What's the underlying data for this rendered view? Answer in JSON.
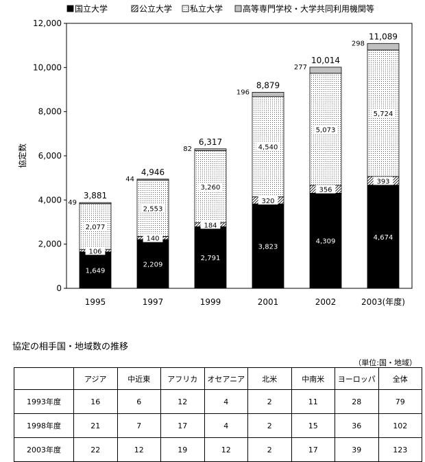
{
  "chart_data": {
    "type": "bar",
    "stacked": true,
    "categories": [
      "1995",
      "1997",
      "1999",
      "2001",
      "2002",
      "2003(年度)"
    ],
    "series": [
      {
        "name": "国立大学",
        "color": "#000000",
        "pattern": "solid",
        "values": [
          1649,
          2209,
          2791,
          3823,
          4309,
          4674
        ]
      },
      {
        "name": "公立大学",
        "color": "#ffffff",
        "pattern": "hatch",
        "values": [
          106,
          140,
          184,
          320,
          356,
          393
        ]
      },
      {
        "name": "私立大学",
        "color": "#ffffff",
        "pattern": "dots",
        "values": [
          2077,
          2553,
          3260,
          4540,
          5073,
          5724
        ]
      },
      {
        "name": "高等専門学校・大学共同利用機関等",
        "color": "#c0c0c0",
        "pattern": "solid",
        "values": [
          49,
          44,
          82,
          196,
          277,
          298
        ]
      }
    ],
    "totals": [
      3881,
      4946,
      6317,
      8879,
      10014,
      11089
    ],
    "value_labels": {
      "国立大学": [
        "1,649",
        "2,209",
        "2,791",
        "3,823",
        "4,309",
        "4,674"
      ],
      "公立大学": [
        "106",
        "140",
        "184",
        "320",
        "356",
        "393"
      ],
      "私立大学": [
        "2,077",
        "2,553",
        "3,260",
        "4,540",
        "5,073",
        "5,724"
      ],
      "高等専門学校・大学共同利用機関等": [
        "49",
        "44",
        "82",
        "196",
        "277",
        "298"
      ]
    },
    "total_labels": [
      "3,881",
      "4,946",
      "6,317",
      "8,879",
      "10,014",
      "11,089"
    ],
    "ylabel": "協定数",
    "ylim": [
      0,
      12000
    ],
    "yticks": [
      0,
      2000,
      4000,
      6000,
      8000,
      10000,
      12000
    ],
    "ytick_labels": [
      "0",
      "2,000",
      "4,000",
      "6,000",
      "8,000",
      "10,000",
      "12,000"
    ],
    "legend_position": "top",
    "grid": false
  },
  "table": {
    "title": "協定の相手国・地域数の推移",
    "unit": "（単位:国・地域）",
    "columns": [
      "アジア",
      "中近東",
      "アフリカ",
      "オセアニア",
      "北米",
      "中南米",
      "ヨーロッパ",
      "全体"
    ],
    "rows": [
      {
        "label": "1993年度",
        "values": [
          "16",
          "6",
          "12",
          "4",
          "2",
          "11",
          "28",
          "79"
        ]
      },
      {
        "label": "1998年度",
        "values": [
          "21",
          "7",
          "17",
          "4",
          "2",
          "15",
          "36",
          "102"
        ]
      },
      {
        "label": "2003年度",
        "values": [
          "22",
          "12",
          "19",
          "12",
          "2",
          "17",
          "39",
          "123"
        ]
      }
    ]
  }
}
